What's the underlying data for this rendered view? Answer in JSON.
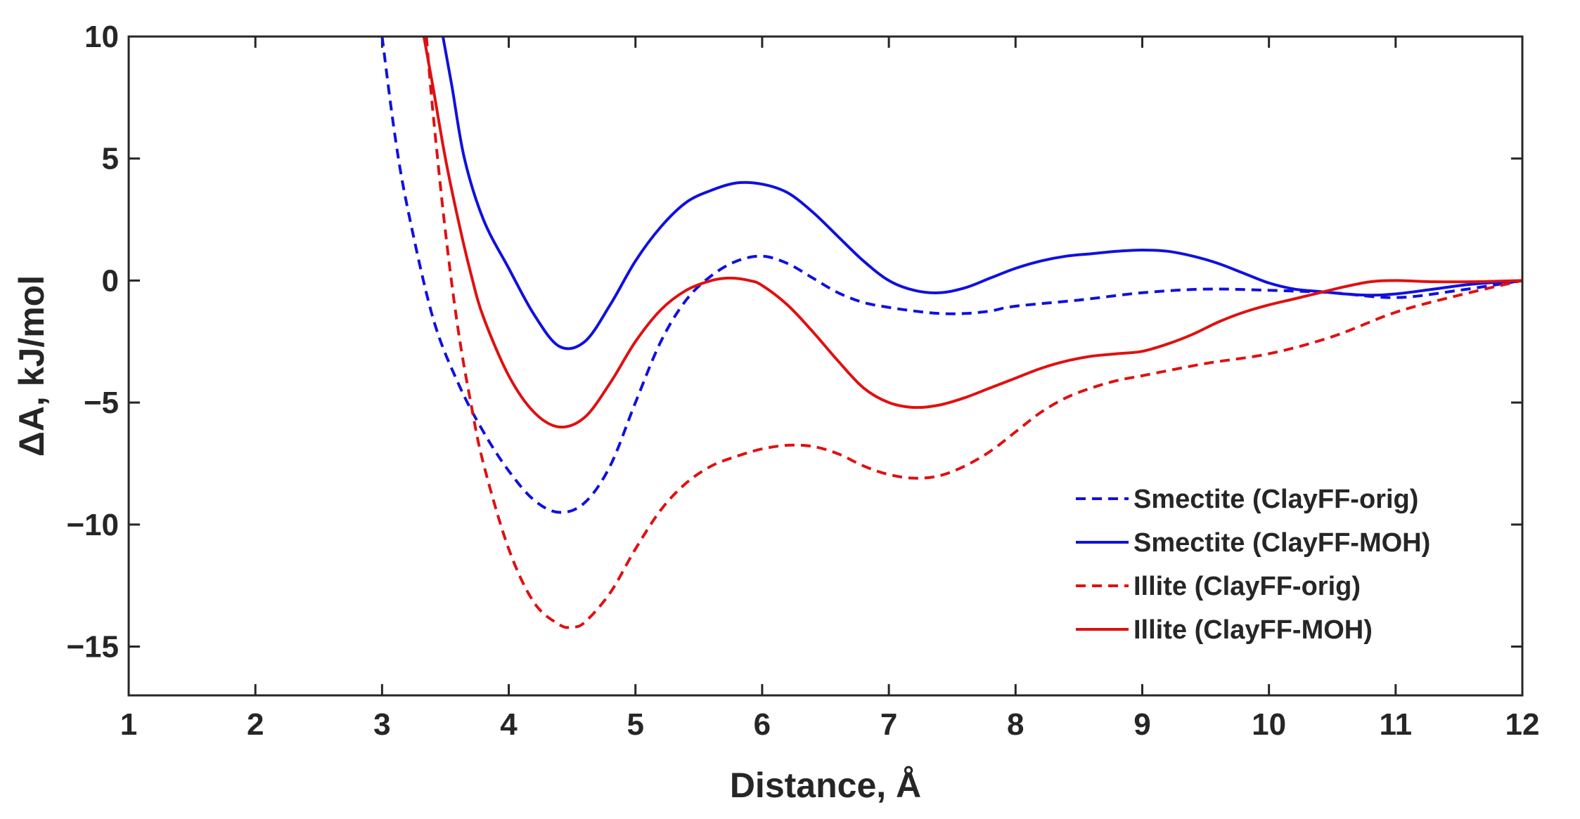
{
  "chart_data": {
    "type": "line",
    "title": "",
    "xlabel": "Distance, Å",
    "ylabel": "ΔA, kJ/mol",
    "xlim": [
      1,
      12
    ],
    "ylim": [
      -17,
      10
    ],
    "xticks": [
      1,
      2,
      3,
      4,
      5,
      6,
      7,
      8,
      9,
      10,
      11,
      12
    ],
    "yticks": [
      10,
      5,
      0,
      -5,
      -10,
      -15
    ],
    "ytick_labels": [
      "10",
      "5",
      "0",
      "−5",
      "−10",
      "−15"
    ],
    "legend_position": "lower-right",
    "series": [
      {
        "name": "Smectite (ClayFF-orig)",
        "color": "#1010e0",
        "style": "dashed",
        "x": [
          3.0,
          3.1,
          3.2,
          3.4,
          3.6,
          3.8,
          4.0,
          4.2,
          4.4,
          4.6,
          4.8,
          5.0,
          5.2,
          5.4,
          5.6,
          5.8,
          6.0,
          6.2,
          6.4,
          6.6,
          6.8,
          7.0,
          7.2,
          7.4,
          7.6,
          7.8,
          8.0,
          8.5,
          9.0,
          9.5,
          10.0,
          10.5,
          11.0,
          11.5,
          12.0
        ],
        "y": [
          10,
          6,
          3,
          -1.5,
          -4.2,
          -6.2,
          -7.8,
          -9.0,
          -9.5,
          -9.1,
          -7.6,
          -5.0,
          -2.5,
          -0.8,
          0.2,
          0.8,
          1.0,
          0.7,
          0.1,
          -0.5,
          -0.9,
          -1.1,
          -1.25,
          -1.35,
          -1.35,
          -1.25,
          -1.05,
          -0.8,
          -0.5,
          -0.35,
          -0.4,
          -0.5,
          -0.7,
          -0.4,
          0.0
        ]
      },
      {
        "name": "Smectite (ClayFF-MOH)",
        "color": "#1010e0",
        "style": "solid",
        "x": [
          3.48,
          3.55,
          3.65,
          3.8,
          4.0,
          4.2,
          4.4,
          4.6,
          4.8,
          5.0,
          5.2,
          5.4,
          5.6,
          5.8,
          6.0,
          6.2,
          6.4,
          6.6,
          6.8,
          7.0,
          7.2,
          7.4,
          7.6,
          7.8,
          8.0,
          8.2,
          8.4,
          8.6,
          8.8,
          9.0,
          9.2,
          9.4,
          9.6,
          9.8,
          10.0,
          10.2,
          10.4,
          10.6,
          10.8,
          11.0,
          11.3,
          11.6,
          12.0
        ],
        "y": [
          10,
          8,
          5,
          2.5,
          0.5,
          -1.4,
          -2.7,
          -2.5,
          -1.0,
          0.8,
          2.2,
          3.2,
          3.7,
          4.0,
          3.95,
          3.6,
          2.8,
          1.8,
          0.8,
          0.0,
          -0.4,
          -0.5,
          -0.3,
          0.1,
          0.5,
          0.8,
          1.0,
          1.1,
          1.2,
          1.25,
          1.2,
          1.0,
          0.7,
          0.3,
          -0.1,
          -0.35,
          -0.45,
          -0.55,
          -0.6,
          -0.55,
          -0.35,
          -0.15,
          0.0
        ]
      },
      {
        "name": "Illite (ClayFF-orig)",
        "color": "#e01010",
        "style": "dashed",
        "x": [
          3.35,
          3.4,
          3.5,
          3.6,
          3.7,
          3.8,
          4.0,
          4.2,
          4.4,
          4.5,
          4.6,
          4.8,
          5.0,
          5.2,
          5.4,
          5.6,
          5.8,
          6.0,
          6.2,
          6.4,
          6.6,
          6.8,
          7.0,
          7.2,
          7.4,
          7.6,
          7.8,
          8.0,
          8.2,
          8.4,
          8.6,
          8.8,
          9.0,
          9.5,
          10.0,
          10.5,
          11.0,
          11.5,
          12.0
        ],
        "y": [
          10,
          7,
          2,
          -2,
          -5,
          -7.5,
          -11,
          -13.2,
          -14.1,
          -14.2,
          -14.0,
          -12.8,
          -11.0,
          -9.4,
          -8.3,
          -7.6,
          -7.2,
          -6.9,
          -6.75,
          -6.8,
          -7.1,
          -7.6,
          -7.95,
          -8.1,
          -8.0,
          -7.6,
          -7.0,
          -6.2,
          -5.4,
          -4.8,
          -4.4,
          -4.1,
          -3.9,
          -3.4,
          -3.0,
          -2.3,
          -1.3,
          -0.6,
          0.0
        ]
      },
      {
        "name": "Illite (ClayFF-MOH)",
        "color": "#e01010",
        "style": "solid",
        "x": [
          3.33,
          3.4,
          3.5,
          3.6,
          3.7,
          3.8,
          4.0,
          4.2,
          4.4,
          4.6,
          4.8,
          5.0,
          5.2,
          5.4,
          5.6,
          5.75,
          5.9,
          6.0,
          6.2,
          6.4,
          6.6,
          6.8,
          7.0,
          7.2,
          7.4,
          7.6,
          7.8,
          8.0,
          8.2,
          8.4,
          8.6,
          8.8,
          9.0,
          9.2,
          9.4,
          9.6,
          9.8,
          10.0,
          10.2,
          10.4,
          10.6,
          10.8,
          11.0,
          11.3,
          11.6,
          12.0
        ],
        "y": [
          10,
          8,
          5,
          2.5,
          0.3,
          -1.5,
          -3.9,
          -5.4,
          -6.0,
          -5.6,
          -4.2,
          -2.5,
          -1.2,
          -0.4,
          0.0,
          0.1,
          0.0,
          -0.2,
          -1.0,
          -2.1,
          -3.3,
          -4.4,
          -5.0,
          -5.2,
          -5.1,
          -4.8,
          -4.4,
          -4.0,
          -3.6,
          -3.3,
          -3.1,
          -3.0,
          -2.9,
          -2.6,
          -2.2,
          -1.7,
          -1.3,
          -1.0,
          -0.75,
          -0.5,
          -0.25,
          -0.05,
          0.0,
          -0.05,
          -0.05,
          0.0
        ]
      }
    ]
  }
}
